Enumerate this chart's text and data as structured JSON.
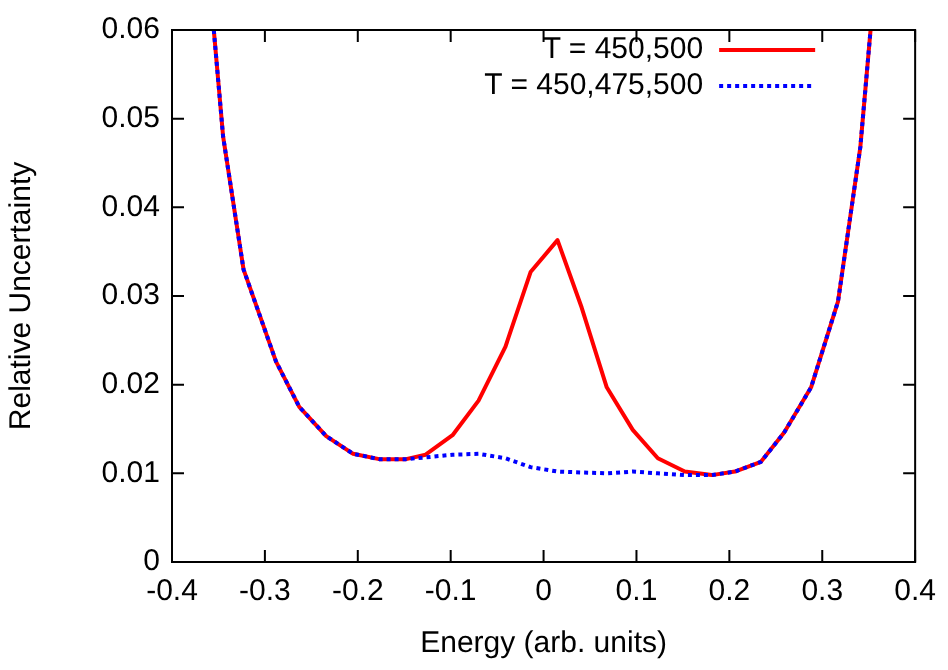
{
  "chart_data": {
    "type": "line",
    "xlabel": "Energy (arb. units)",
    "ylabel": "Relative Uncertainty",
    "x": [
      -0.355,
      -0.345,
      -0.323,
      -0.288,
      -0.263,
      -0.234,
      -0.205,
      -0.177,
      -0.148,
      -0.127,
      -0.098,
      -0.07,
      -0.041,
      -0.014,
      0.015,
      0.041,
      0.068,
      0.096,
      0.123,
      0.152,
      0.181,
      0.206,
      0.234,
      0.259,
      0.288,
      0.317,
      0.341,
      0.352
    ],
    "series": [
      {
        "name": "T = 450,500",
        "color": "#ff0000",
        "line_style": "solid",
        "values": [
          0.06,
          0.048,
          0.033,
          0.0226,
          0.0175,
          0.0142,
          0.0122,
          0.0116,
          0.0116,
          0.0121,
          0.0143,
          0.0182,
          0.0243,
          0.0327,
          0.0363,
          0.0287,
          0.0197,
          0.0149,
          0.0117,
          0.0102,
          0.0098,
          0.0102,
          0.0113,
          0.0146,
          0.0197,
          0.0294,
          0.0468,
          0.06
        ]
      },
      {
        "name": "T = 450,475,500",
        "color": "#0000ff",
        "line_style": "dotted",
        "values": [
          0.06,
          0.048,
          0.033,
          0.0226,
          0.0175,
          0.0142,
          0.0122,
          0.0116,
          0.0116,
          0.0118,
          0.0121,
          0.0122,
          0.0117,
          0.0107,
          0.0102,
          0.0101,
          0.01,
          0.0102,
          0.01,
          0.0098,
          0.0098,
          0.0102,
          0.0113,
          0.0146,
          0.0197,
          0.0294,
          0.0468,
          0.06
        ]
      }
    ],
    "xlim": [
      -0.4,
      0.4
    ],
    "xticks": [
      -0.4,
      -0.3,
      -0.2,
      -0.1,
      0,
      0.1,
      0.2,
      0.3,
      0.4
    ],
    "ylim": [
      0,
      0.06
    ],
    "yticks": [
      0,
      0.01,
      0.02,
      0.03,
      0.04,
      0.05,
      0.06
    ],
    "grid": false,
    "legend": "top right",
    "marker": "none"
  }
}
